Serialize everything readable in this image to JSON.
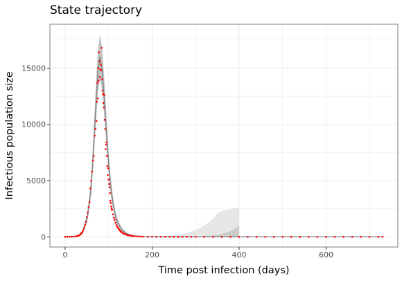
{
  "chart_data": {
    "type": "scatter",
    "title": "State trajectory",
    "xlabel": "Time post infection (days)",
    "ylabel": "Infectious population size",
    "xlim": [
      -35,
      765
    ],
    "ylim": [
      -900,
      18900
    ],
    "x_ticks": [
      0,
      200,
      400,
      600
    ],
    "x_tick_labels": [
      "0",
      "200",
      "400",
      "600"
    ],
    "y_ticks": [
      0,
      5000,
      10000,
      15000
    ],
    "y_tick_labels": [
      "0",
      "5000",
      "10000",
      "15000"
    ],
    "grid": true,
    "legend": "none",
    "colors": {
      "points": "#ff0000",
      "mean_line": "#888888",
      "band_inner": "#bdbdbd",
      "band_outer": "#e0e0e0",
      "panel_border": "#7f7f7f",
      "grid": "#ebebeb"
    },
    "observed_points": {
      "x": [
        0,
        5,
        10,
        15,
        20,
        25,
        28,
        30,
        32,
        34,
        36,
        38,
        40,
        42,
        44,
        46,
        48,
        50,
        52,
        54,
        56,
        58,
        60,
        62,
        64,
        66,
        68,
        70,
        72,
        73,
        74,
        75,
        76,
        77,
        78,
        79,
        80,
        81,
        82,
        83,
        84,
        85,
        86,
        87,
        88,
        89,
        90,
        91,
        92,
        93,
        94,
        95,
        96,
        97,
        98,
        99,
        100,
        101,
        102,
        103,
        104,
        105,
        106,
        107,
        108,
        110,
        112,
        114,
        116,
        118,
        120,
        122,
        124,
        126,
        128,
        130,
        133,
        136,
        139,
        142,
        145,
        148,
        152,
        156,
        160,
        165,
        170,
        175,
        180,
        190,
        200,
        210,
        220,
        230,
        240,
        250,
        260,
        270,
        280,
        290,
        300,
        320,
        340,
        360,
        380,
        400,
        420,
        440,
        460,
        480,
        500,
        520,
        540,
        560,
        580,
        600,
        620,
        640,
        660,
        680,
        700,
        720,
        730
      ],
      "y": [
        5,
        8,
        12,
        18,
        30,
        50,
        70,
        100,
        140,
        180,
        250,
        340,
        450,
        600,
        800,
        1050,
        1350,
        1750,
        2150,
        2650,
        3100,
        4300,
        5000,
        5800,
        6800,
        7200,
        9000,
        9600,
        10300,
        12000,
        13700,
        12300,
        15000,
        13900,
        16400,
        15600,
        14200,
        14900,
        15300,
        14800,
        16800,
        14000,
        13000,
        12700,
        11900,
        11500,
        12600,
        10400,
        9600,
        7800,
        8200,
        8400,
        7200,
        6300,
        5500,
        6100,
        5100,
        4700,
        4400,
        3900,
        3200,
        3000,
        2700,
        2500,
        2400,
        2000,
        1700,
        1500,
        1250,
        1050,
        900,
        780,
        670,
        560,
        480,
        410,
        330,
        270,
        220,
        180,
        150,
        120,
        95,
        75,
        60,
        45,
        35,
        28,
        22,
        15,
        12,
        9,
        7,
        5,
        4,
        3,
        2,
        2,
        1,
        1,
        1,
        1,
        1,
        1,
        1,
        1,
        1,
        1,
        1,
        1,
        1,
        1,
        1,
        1,
        1,
        1,
        1,
        1,
        1,
        1,
        1,
        1,
        1
      ]
    },
    "mean_trajectory": {
      "x": [
        0,
        20,
        30,
        40,
        50,
        55,
        60,
        65,
        70,
        75,
        80,
        85,
        90,
        95,
        100,
        105,
        110,
        115,
        120,
        130,
        140,
        150,
        160,
        180,
        200,
        250,
        300,
        350,
        400,
        730
      ],
      "y": [
        5,
        30,
        100,
        420,
        1600,
        2800,
        4600,
        7600,
        11200,
        14600,
        16000,
        14900,
        12300,
        9300,
        6500,
        4400,
        3000,
        2000,
        1350,
        650,
        320,
        160,
        90,
        30,
        10,
        3,
        1,
        1,
        1,
        1
      ]
    },
    "uncertainty_band_inner": {
      "x": [
        0,
        20,
        30,
        40,
        50,
        55,
        60,
        65,
        70,
        75,
        80,
        85,
        90,
        95,
        100,
        105,
        110,
        115,
        120,
        130,
        140,
        150,
        160,
        180,
        200,
        250,
        300,
        350,
        400
      ],
      "lower": [
        0,
        15,
        60,
        300,
        1200,
        2200,
        3800,
        6400,
        9600,
        12600,
        14000,
        13100,
        10700,
        8000,
        5600,
        3700,
        2500,
        1600,
        1050,
        480,
        220,
        100,
        50,
        10,
        2,
        0,
        0,
        0,
        0
      ],
      "upper": [
        10,
        50,
        150,
        560,
        2000,
        3400,
        5500,
        8900,
        12800,
        16500,
        18000,
        16800,
        14000,
        10800,
        7600,
        5200,
        3600,
        2400,
        1650,
        820,
        420,
        220,
        130,
        60,
        30,
        15,
        10,
        10,
        10
      ]
    },
    "uncertainty_band_outer": {
      "x": [
        0,
        200,
        230,
        260,
        280,
        300,
        320,
        340,
        350,
        360,
        370,
        380,
        390,
        400
      ],
      "lower": [
        0,
        0,
        0,
        0,
        0,
        0,
        0,
        0,
        0,
        0,
        0,
        0,
        0,
        0
      ],
      "upper": [
        10,
        40,
        80,
        200,
        350,
        600,
        1000,
        1600,
        2100,
        2300,
        2350,
        2450,
        2550,
        2600
      ]
    },
    "late_band": {
      "x": [
        300,
        340,
        360,
        380,
        390,
        400
      ],
      "lower": [
        0,
        0,
        0,
        0,
        0,
        0
      ],
      "upper": [
        20,
        120,
        250,
        500,
        700,
        1000
      ]
    }
  }
}
